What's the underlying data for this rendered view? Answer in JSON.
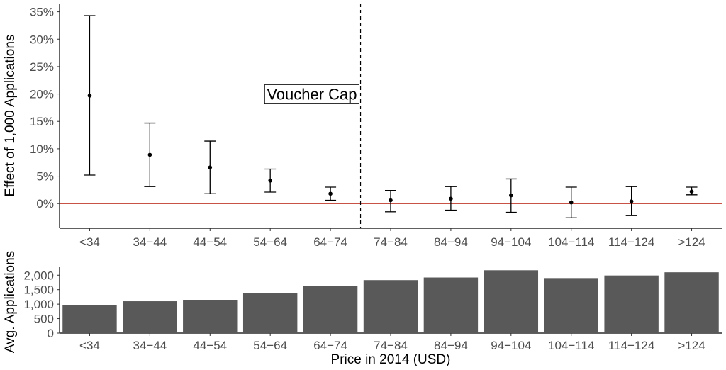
{
  "chart_data": [
    {
      "type": "errorbar",
      "ylabel": "Effect of 1,000 Applications",
      "xlabel": "",
      "categories": [
        "<34",
        "34−44",
        "44−54",
        "54−64",
        "64−74",
        "74−84",
        "84−94",
        "94−104",
        "104−114",
        "114−124",
        ">124"
      ],
      "ytick_labels": [
        "0%",
        "5%",
        "10%",
        "15%",
        "20%",
        "25%",
        "30%",
        "35%"
      ],
      "ytick_values": [
        0,
        5,
        10,
        15,
        20,
        25,
        30,
        35
      ],
      "ylim": [
        -4.5,
        36.5
      ],
      "series": [
        {
          "estimate": [
            19.7,
            8.9,
            6.6,
            4.2,
            1.8,
            0.6,
            0.9,
            1.5,
            0.2,
            0.4,
            2.2
          ],
          "lower": [
            5.2,
            3.1,
            1.8,
            2.1,
            0.6,
            -1.5,
            -1.2,
            -1.6,
            -2.6,
            -2.2,
            1.6
          ],
          "upper": [
            34.3,
            14.7,
            11.4,
            6.3,
            3.0,
            2.4,
            3.1,
            4.5,
            3.0,
            3.1,
            3.0
          ]
        }
      ],
      "reference_line": {
        "y": 0,
        "color": "#c0392b"
      },
      "annotation": {
        "text": "Voucher Cap",
        "x_between": [
          "64−74",
          "74−84"
        ],
        "y": 20,
        "line_style": "dashed"
      },
      "grid": false
    },
    {
      "type": "bar",
      "ylabel": "Avg. Applications",
      "xlabel": "Price in 2014 (USD)",
      "categories": [
        "<34",
        "34−44",
        "44−54",
        "54−64",
        "64−74",
        "74−84",
        "84−94",
        "94−104",
        "104−114",
        "114−124",
        ">124"
      ],
      "values": [
        975,
        1100,
        1150,
        1370,
        1630,
        1830,
        1920,
        2170,
        1900,
        1990,
        2100
      ],
      "ytick_labels": [
        "0",
        "500",
        "1,000",
        "1,500",
        "2,000"
      ],
      "ytick_values": [
        0,
        500,
        1000,
        1500,
        2000
      ],
      "ylim": [
        0,
        2300
      ],
      "bar_color": "#595959",
      "grid": false
    }
  ]
}
